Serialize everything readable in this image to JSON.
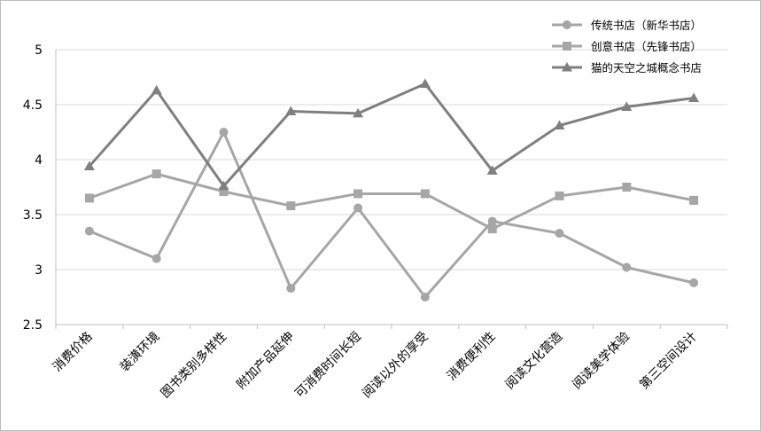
{
  "chart_data": {
    "type": "line",
    "categories": [
      "消费价格",
      "装潢环境",
      "图书类别多样性",
      "附加产品延伸",
      "可消费时间长短",
      "阅读以外的享受",
      "消费便利性",
      "阅读文化营造",
      "阅读美学体验",
      "第三空间设计"
    ],
    "series": [
      {
        "name": "传统书店（新华书店）",
        "marker": "circle",
        "color": "#a6a6a6",
        "values": [
          3.35,
          3.1,
          4.25,
          2.83,
          3.56,
          2.75,
          3.44,
          3.33,
          3.02,
          2.88
        ]
      },
      {
        "name": "创意书店（先锋书店）",
        "marker": "square",
        "color": "#a6a6a6",
        "values": [
          3.65,
          3.87,
          3.71,
          3.58,
          3.69,
          3.69,
          3.37,
          3.67,
          3.75,
          3.63
        ]
      },
      {
        "name": "猫的天空之城概念书店",
        "marker": "triangle",
        "color": "#7f7f7f",
        "values": [
          3.94,
          4.63,
          3.76,
          4.44,
          4.42,
          4.69,
          3.9,
          4.31,
          4.48,
          4.56
        ]
      }
    ],
    "ylim": [
      2.5,
      5
    ],
    "yticks": [
      "2.5",
      "3",
      "3.5",
      "4",
      "4.5",
      "5"
    ],
    "grid": true,
    "legend": "top-right"
  }
}
